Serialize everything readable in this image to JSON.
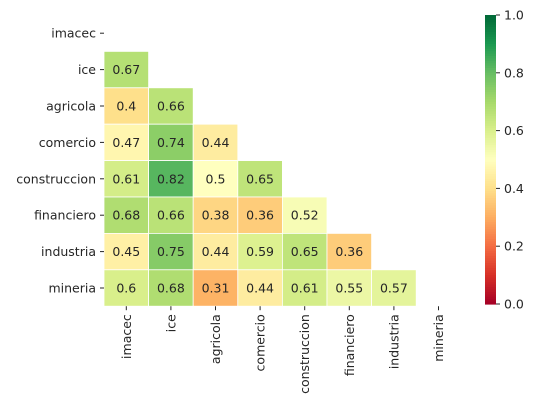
{
  "chart_data": {
    "type": "heatmap",
    "title": "",
    "xlabel": "",
    "ylabel": "",
    "rows": [
      "imacec",
      "ice",
      "agricola",
      "comercio",
      "construccion",
      "financiero",
      "industria",
      "mineria"
    ],
    "columns": [
      "imacec",
      "ice",
      "agricola",
      "comercio",
      "construccion",
      "financiero",
      "industria",
      "mineria"
    ],
    "mask": "upper-triangle-and-diagonal",
    "cells": [
      {
        "row": "ice",
        "col": "imacec",
        "value": 0.67,
        "label": "0.67"
      },
      {
        "row": "agricola",
        "col": "imacec",
        "value": 0.4,
        "label": "0.4"
      },
      {
        "row": "agricola",
        "col": "ice",
        "value": 0.66,
        "label": "0.66"
      },
      {
        "row": "comercio",
        "col": "imacec",
        "value": 0.47,
        "label": "0.47"
      },
      {
        "row": "comercio",
        "col": "ice",
        "value": 0.74,
        "label": "0.74"
      },
      {
        "row": "comercio",
        "col": "agricola",
        "value": 0.44,
        "label": "0.44"
      },
      {
        "row": "construccion",
        "col": "imacec",
        "value": 0.61,
        "label": "0.61"
      },
      {
        "row": "construccion",
        "col": "ice",
        "value": 0.82,
        "label": "0.82"
      },
      {
        "row": "construccion",
        "col": "agricola",
        "value": 0.5,
        "label": "0.5"
      },
      {
        "row": "construccion",
        "col": "comercio",
        "value": 0.65,
        "label": "0.65"
      },
      {
        "row": "financiero",
        "col": "imacec",
        "value": 0.68,
        "label": "0.68"
      },
      {
        "row": "financiero",
        "col": "ice",
        "value": 0.66,
        "label": "0.66"
      },
      {
        "row": "financiero",
        "col": "agricola",
        "value": 0.38,
        "label": "0.38"
      },
      {
        "row": "financiero",
        "col": "comercio",
        "value": 0.36,
        "label": "0.36"
      },
      {
        "row": "financiero",
        "col": "construccion",
        "value": 0.52,
        "label": "0.52"
      },
      {
        "row": "industria",
        "col": "imacec",
        "value": 0.45,
        "label": "0.45"
      },
      {
        "row": "industria",
        "col": "ice",
        "value": 0.75,
        "label": "0.75"
      },
      {
        "row": "industria",
        "col": "agricola",
        "value": 0.44,
        "label": "0.44"
      },
      {
        "row": "industria",
        "col": "comercio",
        "value": 0.59,
        "label": "0.59"
      },
      {
        "row": "industria",
        "col": "construccion",
        "value": 0.65,
        "label": "0.65"
      },
      {
        "row": "industria",
        "col": "financiero",
        "value": 0.36,
        "label": "0.36"
      },
      {
        "row": "mineria",
        "col": "imacec",
        "value": 0.6,
        "label": "0.6"
      },
      {
        "row": "mineria",
        "col": "ice",
        "value": 0.68,
        "label": "0.68"
      },
      {
        "row": "mineria",
        "col": "agricola",
        "value": 0.31,
        "label": "0.31"
      },
      {
        "row": "mineria",
        "col": "comercio",
        "value": 0.44,
        "label": "0.44"
      },
      {
        "row": "mineria",
        "col": "construccion",
        "value": 0.61,
        "label": "0.61"
      },
      {
        "row": "mineria",
        "col": "financiero",
        "value": 0.55,
        "label": "0.55"
      },
      {
        "row": "mineria",
        "col": "industria",
        "value": 0.57,
        "label": "0.57"
      }
    ],
    "colorbar": {
      "range": [
        0.0,
        1.0
      ],
      "ticks": [
        "0.0",
        "0.2",
        "0.4",
        "0.6",
        "0.8",
        "1.0"
      ],
      "colormap": "RdYlGn"
    },
    "x_tick_rotation": "vertical",
    "grid": false,
    "legend": "colorbar-right"
  }
}
